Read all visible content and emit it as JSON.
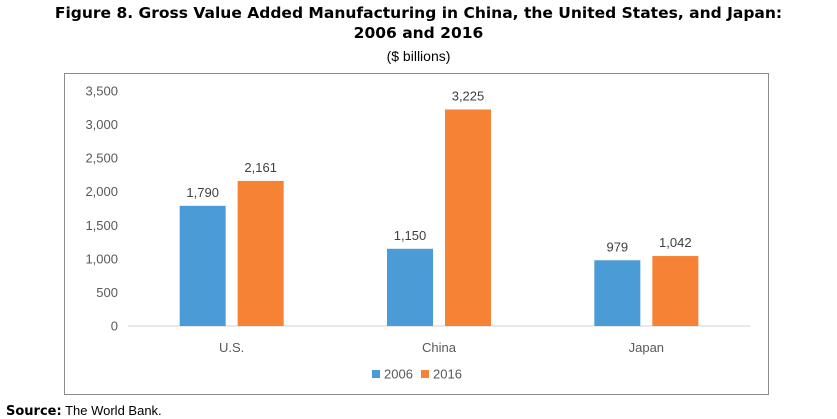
{
  "title_line1": "Figure 8. Gross Value Added Manufacturing in China, the United States, and Japan:",
  "title_line2": "2006 and 2016",
  "subtitle": "($ billions)",
  "source_label": "Source:",
  "source_text": "The World Bank.",
  "chart_data": {
    "type": "bar",
    "categories": [
      "U.S.",
      "China",
      "Japan"
    ],
    "series": [
      {
        "name": "2006",
        "values": [
          1790,
          1150,
          979
        ],
        "labels": [
          "1,790",
          "1,150",
          "979"
        ],
        "color": "#4a9bd6"
      },
      {
        "name": "2016",
        "values": [
          2161,
          3225,
          1042
        ],
        "labels": [
          "2,161",
          "3,225",
          "1,042"
        ],
        "color": "#f58235"
      }
    ],
    "yticks": [
      "0",
      "500",
      "1,000",
      "1,500",
      "2,000",
      "2,500",
      "3,000",
      "3,500"
    ],
    "ytick_values": [
      0,
      500,
      1000,
      1500,
      2000,
      2500,
      3000,
      3500
    ],
    "ylim": [
      0,
      3500
    ],
    "grid": false,
    "legend_position": "bottom"
  }
}
